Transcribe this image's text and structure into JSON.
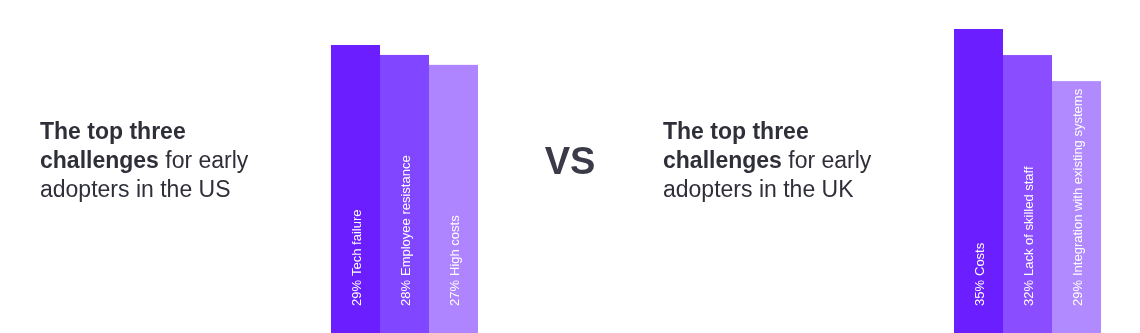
{
  "chart_data": [
    {
      "type": "bar",
      "title": "The top three challenges for early adopters in the US",
      "categories": [
        "Tech failure",
        "Employee resistance",
        "High costs"
      ],
      "values": [
        29,
        28,
        27
      ],
      "value_labels": [
        "29%",
        "28%",
        "27%"
      ],
      "colors": [
        "#6b1eff",
        "#8146ff",
        "#ae85ff"
      ],
      "annotations": [
        "VS"
      ]
    },
    {
      "type": "bar",
      "title": "The top three challenges for early adopters in the UK",
      "categories": [
        "Costs",
        "Lack of skilled staff",
        "Integration with existing systems"
      ],
      "values": [
        35,
        32,
        29
      ],
      "value_labels": [
        "35%",
        "32%",
        "29%"
      ],
      "colors": [
        "#6b1eff",
        "#8a4dff",
        "#b28aff"
      ]
    }
  ]
}
